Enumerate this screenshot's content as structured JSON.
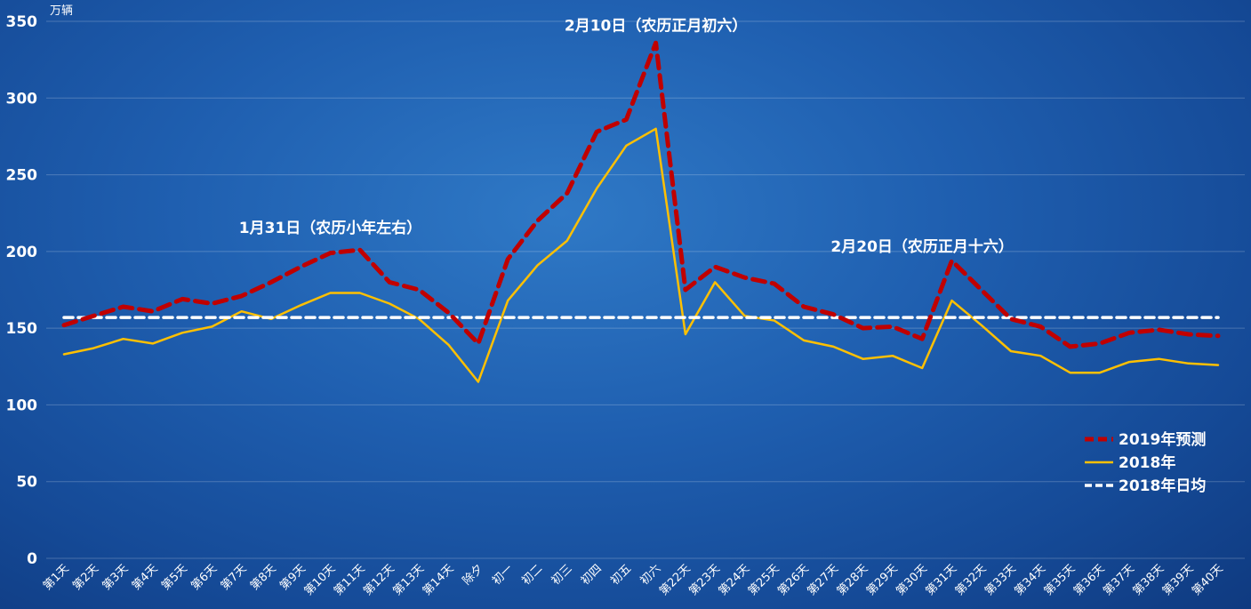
{
  "chart_data": {
    "type": "line",
    "unit_label": "万辆",
    "ylim": [
      0,
      350
    ],
    "yticks": [
      0,
      50,
      100,
      150,
      200,
      250,
      300,
      350
    ],
    "grid": true,
    "legend_position": "right",
    "categories": [
      "第1天",
      "第2天",
      "第3天",
      "第4天",
      "第5天",
      "第6天",
      "第7天",
      "第8天",
      "第9天",
      "第10天",
      "第11天",
      "第12天",
      "第13天",
      "第14天",
      "除夕",
      "初一",
      "初二",
      "初三",
      "初四",
      "初五",
      "初六",
      "第22天",
      "第23天",
      "第24天",
      "第25天",
      "第26天",
      "第27天",
      "第28天",
      "第29天",
      "第30天",
      "第31天",
      "第32天",
      "第33天",
      "第34天",
      "第35天",
      "第36天",
      "第37天",
      "第38天",
      "第39天",
      "第40天"
    ],
    "series": [
      {
        "name": "2019年预测",
        "color": "#c00000",
        "style": "dashed",
        "values": [
          152,
          158,
          164,
          161,
          169,
          166,
          171,
          180,
          190,
          199,
          201,
          180,
          175,
          160,
          140,
          195,
          220,
          238,
          278,
          286,
          336,
          175,
          190,
          183,
          179,
          164,
          159,
          150,
          151,
          143,
          194,
          175,
          156,
          151,
          138,
          140,
          147,
          149,
          146,
          145
        ]
      },
      {
        "name": "2018年",
        "color": "#ffc000",
        "style": "solid",
        "values": [
          133,
          137,
          143,
          140,
          147,
          151,
          161,
          156,
          165,
          173,
          173,
          166,
          156,
          139,
          115,
          168,
          191,
          207,
          241,
          269,
          280,
          146,
          180,
          158,
          155,
          142,
          138,
          130,
          132,
          124,
          168,
          152,
          135,
          132,
          121,
          121,
          128,
          130,
          127,
          126
        ]
      },
      {
        "name": "2018年日均",
        "color": "#ffffff",
        "style": "dashed",
        "values": [
          157,
          157,
          157,
          157,
          157,
          157,
          157,
          157,
          157,
          157,
          157,
          157,
          157,
          157,
          157,
          157,
          157,
          157,
          157,
          157,
          157,
          157,
          157,
          157,
          157,
          157,
          157,
          157,
          157,
          157,
          157,
          157,
          157,
          157,
          157,
          157,
          157,
          157,
          157,
          157
        ]
      }
    ],
    "annotations": [
      {
        "text": "1月31日（农历小年左右）",
        "category": "第10天",
        "value": 212
      },
      {
        "text": "2月10日（农历正月初六）",
        "category": "初六",
        "value": 344
      },
      {
        "text": "2月20日（农历正月十六）",
        "category": "第30天",
        "value": 200
      }
    ]
  }
}
